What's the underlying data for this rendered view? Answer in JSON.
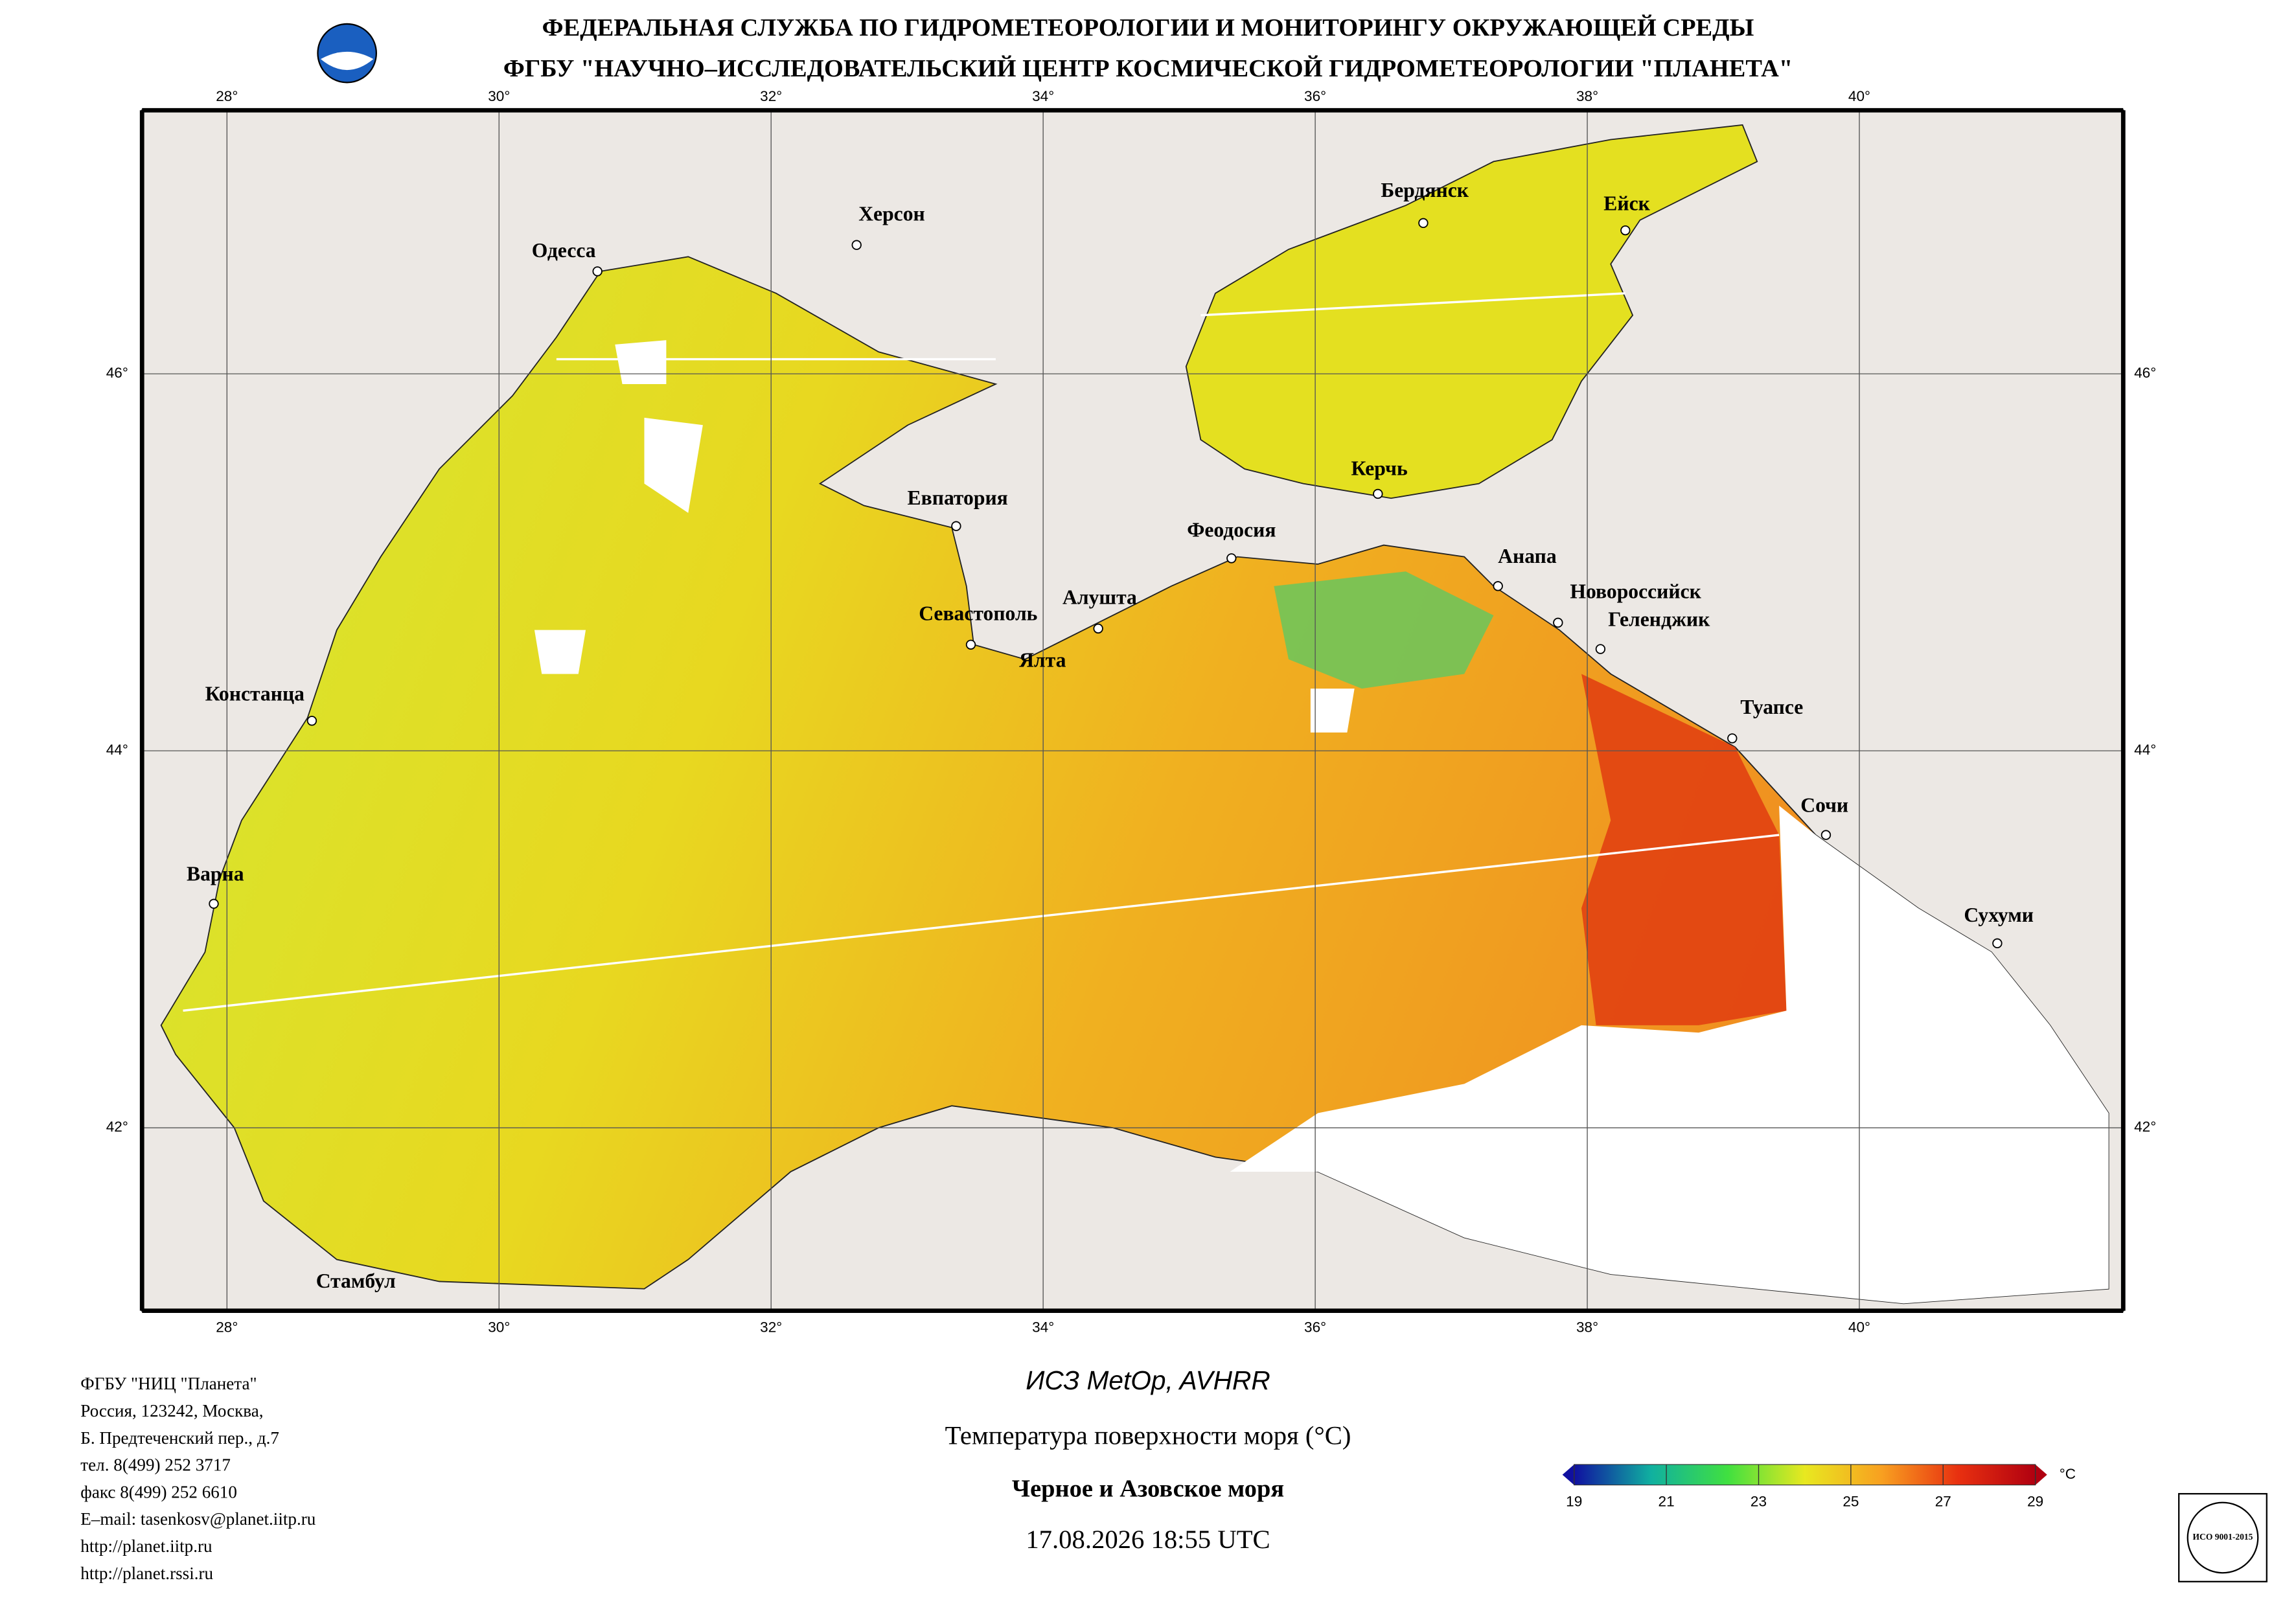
{
  "header": {
    "line1": "ФЕДЕРАЛЬНАЯ СЛУЖБА ПО ГИДРОМЕТЕОРОЛОГИИ И МОНИТОРИНГУ ОКРУЖАЮЩЕЙ СРЕДЫ",
    "line2": "ФГБУ \"НАУЧНО–ИССЛЕДОВАТЕЛЬСКИЙ ЦЕНТР КОСМИЧЕСКОЙ ГИДРОМЕТЕОРОЛОГИИ \"ПЛАНЕТА\""
  },
  "map": {
    "lon_ticks": [
      {
        "value": 28,
        "label": "28°"
      },
      {
        "value": 30,
        "label": "30°"
      },
      {
        "value": 32,
        "label": "32°"
      },
      {
        "value": 34,
        "label": "34°"
      },
      {
        "value": 36,
        "label": "36°"
      },
      {
        "value": 38,
        "label": "38°"
      },
      {
        "value": 40,
        "label": "40°"
      }
    ],
    "lat_ticks": [
      {
        "value": 46,
        "label": "46°"
      },
      {
        "value": 44,
        "label": "44°"
      },
      {
        "value": 42,
        "label": "42°"
      }
    ],
    "cities": [
      "Одесса",
      "Херсон",
      "Бердянск",
      "Ейск",
      "Керчь",
      "Евпатория",
      "Феодосия",
      "Анапа",
      "Новороссийск",
      "Геленджик",
      "Алушта",
      "Севастополь",
      "Ялта",
      "Туапсе",
      "Констанца",
      "Сочи",
      "Варна",
      "Сухуми",
      "Стамбул"
    ]
  },
  "footer": {
    "address": [
      "ФГБУ \"НИЦ \"Планета\"",
      "Россия, 123242, Москва,",
      "Б. Предтеченский пер., д.7",
      "тел. 8(499) 252 3717",
      "факс 8(499) 252 6610",
      "E–mail: tasenkosv@planet.iitp.ru",
      "http://planet.iitp.ru",
      "http://planet.rssi.ru"
    ],
    "satellite": "ИСЗ MetOp, AVHRR",
    "product": "Температура поверхности моря (°C)",
    "region": "Черное и Азовское моря",
    "datetime": "17.08.2026 18:55 UTC",
    "iso": "ИСО 9001-2015"
  },
  "colorbar": {
    "ticks": [
      19,
      21,
      23,
      25,
      27,
      29
    ],
    "unit": "°C",
    "colors": [
      "#1010a0",
      "#10b0a0",
      "#40e040",
      "#e8e820",
      "#f8a020",
      "#e83010",
      "#b00010"
    ]
  }
}
